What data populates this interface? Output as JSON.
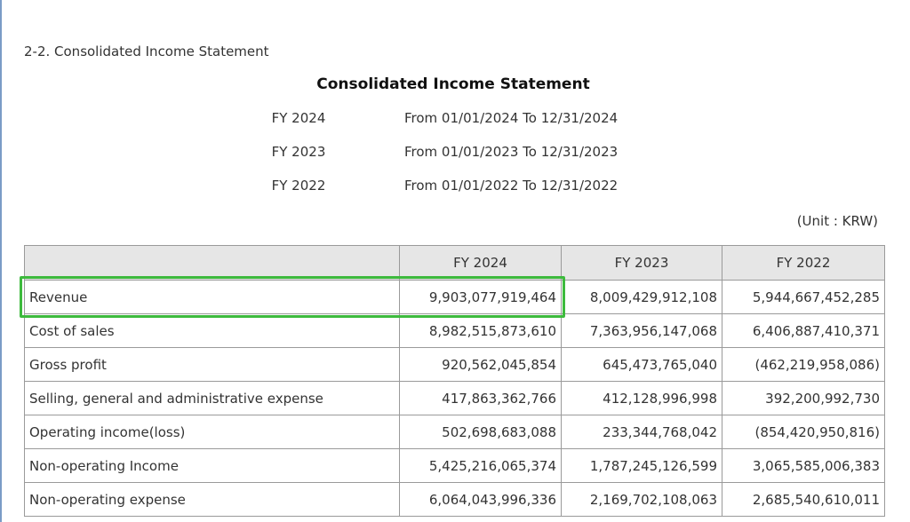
{
  "section_title": "2-2. Consolidated Income Statement",
  "statement_title": "Consolidated Income Statement",
  "periods": [
    {
      "label": "FY 2024",
      "range": "From 01/01/2024 To 12/31/2024"
    },
    {
      "label": "FY 2023",
      "range": "From 01/01/2023 To 12/31/2023"
    },
    {
      "label": "FY 2022",
      "range": "From 01/01/2022 To 12/31/2022"
    }
  ],
  "unit": "(Unit : KRW)",
  "table": {
    "columns": [
      "FY 2024",
      "FY 2023",
      "FY 2022"
    ],
    "rows": [
      [
        "Revenue",
        "9,903,077,919,464",
        "8,009,429,912,108",
        "5,944,667,452,285"
      ],
      [
        "Cost of sales",
        "8,982,515,873,610",
        "7,363,956,147,068",
        "6,406,887,410,371"
      ],
      [
        "Gross profit",
        "920,562,045,854",
        "645,473,765,040",
        "(462,219,958,086)"
      ],
      [
        "Selling, general and administrative expense",
        "417,863,362,766",
        "412,128,996,998",
        "392,200,992,730"
      ],
      [
        "Operating income(loss)",
        "502,698,683,088",
        "233,344,768,042",
        "(854,420,950,816)"
      ],
      [
        "Non-operating Income",
        "5,425,216,065,374",
        "1,787,245,126,599",
        "3,065,585,006,383"
      ],
      [
        "Non-operating expense",
        "6,064,043,996,336",
        "2,169,702,108,063",
        "2,685,540,610,011"
      ]
    ]
  }
}
